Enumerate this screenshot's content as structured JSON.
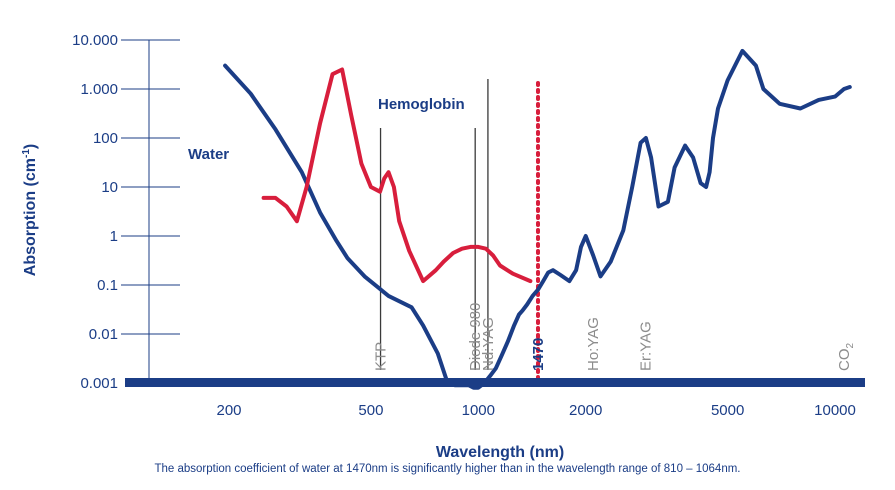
{
  "chart_data": {
    "type": "line",
    "title": "",
    "xlabel": "Wavelength (nm)",
    "ylabel": "Absorption (cm-1)",
    "ylabel_main": "Absorption (cm",
    "ylabel_sup": "-1",
    "ylabel_close": ")",
    "xscale": "log",
    "yscale": "log",
    "xlim": [
      130,
      12000
    ],
    "ylim": [
      0.001,
      10000
    ],
    "xticks": [
      {
        "value": 200,
        "label": "200"
      },
      {
        "value": 500,
        "label": "500"
      },
      {
        "value": 1000,
        "label": "1000"
      },
      {
        "value": 2000,
        "label": "2000"
      },
      {
        "value": 5000,
        "label": "5000"
      },
      {
        "value": 10000,
        "label": "10000"
      }
    ],
    "yticks": [
      {
        "value": 10000,
        "label": "10.000"
      },
      {
        "value": 1000,
        "label": "1.000"
      },
      {
        "value": 100,
        "label": "100"
      },
      {
        "value": 10,
        "label": "10"
      },
      {
        "value": 1,
        "label": "1"
      },
      {
        "value": 0.1,
        "label": "0.1"
      },
      {
        "value": 0.01,
        "label": "0.01"
      },
      {
        "value": 0.001,
        "label": "0.001"
      }
    ],
    "series": [
      {
        "name": "Water",
        "color": "#1b3d86",
        "x": [
          195,
          230,
          270,
          320,
          360,
          400,
          430,
          480,
          560,
          650,
          700,
          770,
          820,
          860,
          900,
          940,
          970,
          1000,
          1040,
          1080,
          1120,
          1160,
          1210,
          1260,
          1300,
          1330,
          1370,
          1420,
          1470,
          1520,
          1570,
          1620,
          1700,
          1800,
          1880,
          1940,
          2000,
          2100,
          2200,
          2350,
          2550,
          2700,
          2850,
          2950,
          3050,
          3200,
          3400,
          3550,
          3800,
          4000,
          4200,
          4350,
          4450,
          4550,
          4700,
          5000,
          5500,
          6000,
          6300,
          7000,
          8000,
          9000,
          10000,
          10600,
          11000
        ],
        "y": [
          3000,
          800,
          150,
          20,
          3,
          0.8,
          0.35,
          0.15,
          0.06,
          0.035,
          0.015,
          0.004,
          0.001,
          0.0009,
          0.0009,
          0.0009,
          0.0008,
          0.0008,
          0.001,
          0.0014,
          0.002,
          0.0035,
          0.007,
          0.015,
          0.025,
          0.03,
          0.04,
          0.06,
          0.08,
          0.12,
          0.18,
          0.2,
          0.16,
          0.12,
          0.2,
          0.6,
          1.0,
          0.4,
          0.15,
          0.3,
          1.3,
          10,
          80,
          100,
          40,
          4,
          5,
          25,
          70,
          40,
          12,
          10,
          20,
          100,
          400,
          1500,
          6000,
          3000,
          1000,
          500,
          400,
          600,
          700,
          1000,
          1100
        ],
        "y_points_note": "approximate log-log digitization of plotted curve"
      },
      {
        "name": "Hemoglobin",
        "color": "#d81e3c",
        "x": [
          250,
          270,
          290,
          310,
          330,
          360,
          390,
          415,
          440,
          470,
          500,
          530,
          545,
          560,
          580,
          600,
          640,
          700,
          760,
          800,
          850,
          900,
          950,
          1000,
          1050,
          1100,
          1150,
          1250,
          1400
        ],
        "y": [
          6,
          6,
          4,
          2,
          10,
          200,
          2000,
          2500,
          300,
          30,
          10,
          8,
          15,
          20,
          10,
          2,
          0.5,
          0.12,
          0.2,
          0.3,
          0.45,
          0.55,
          0.6,
          0.6,
          0.55,
          0.4,
          0.25,
          0.17,
          0.12
        ]
      }
    ],
    "series_labels": [
      {
        "series": "Water",
        "text": "Water"
      },
      {
        "series": "Hemoglobin",
        "text": "Hemoglobin"
      }
    ],
    "lasers": [
      {
        "name": "KTP",
        "wavelength": 532,
        "label": "KTP",
        "line_top": 100,
        "highlight": false
      },
      {
        "name": "Diode 980",
        "wavelength": 980,
        "label": "Diode 980",
        "line_top": 100,
        "highlight": false
      },
      {
        "name": "Nd:YAG",
        "wavelength": 1064,
        "label": "Nd:YAG",
        "line_top": 1000,
        "highlight": false
      },
      {
        "name": "1470",
        "wavelength": 1470,
        "label": "1470",
        "line_top": 1000,
        "highlight": true,
        "color": "#d81e3c"
      },
      {
        "name": "Ho:YAG",
        "wavelength": 2100,
        "label": "Ho:YAG",
        "highlight": false
      },
      {
        "name": "Er:YAG",
        "wavelength": 2940,
        "label": "Er:YAG",
        "highlight": false
      },
      {
        "name": "CO2",
        "wavelength": 10600,
        "label": "CO",
        "label_sub": "2",
        "highlight": false
      }
    ],
    "annotation": "The absorption coefficient of water at 1470nm is significantly higher than in the wavelength range of 810 – 1064nm."
  }
}
